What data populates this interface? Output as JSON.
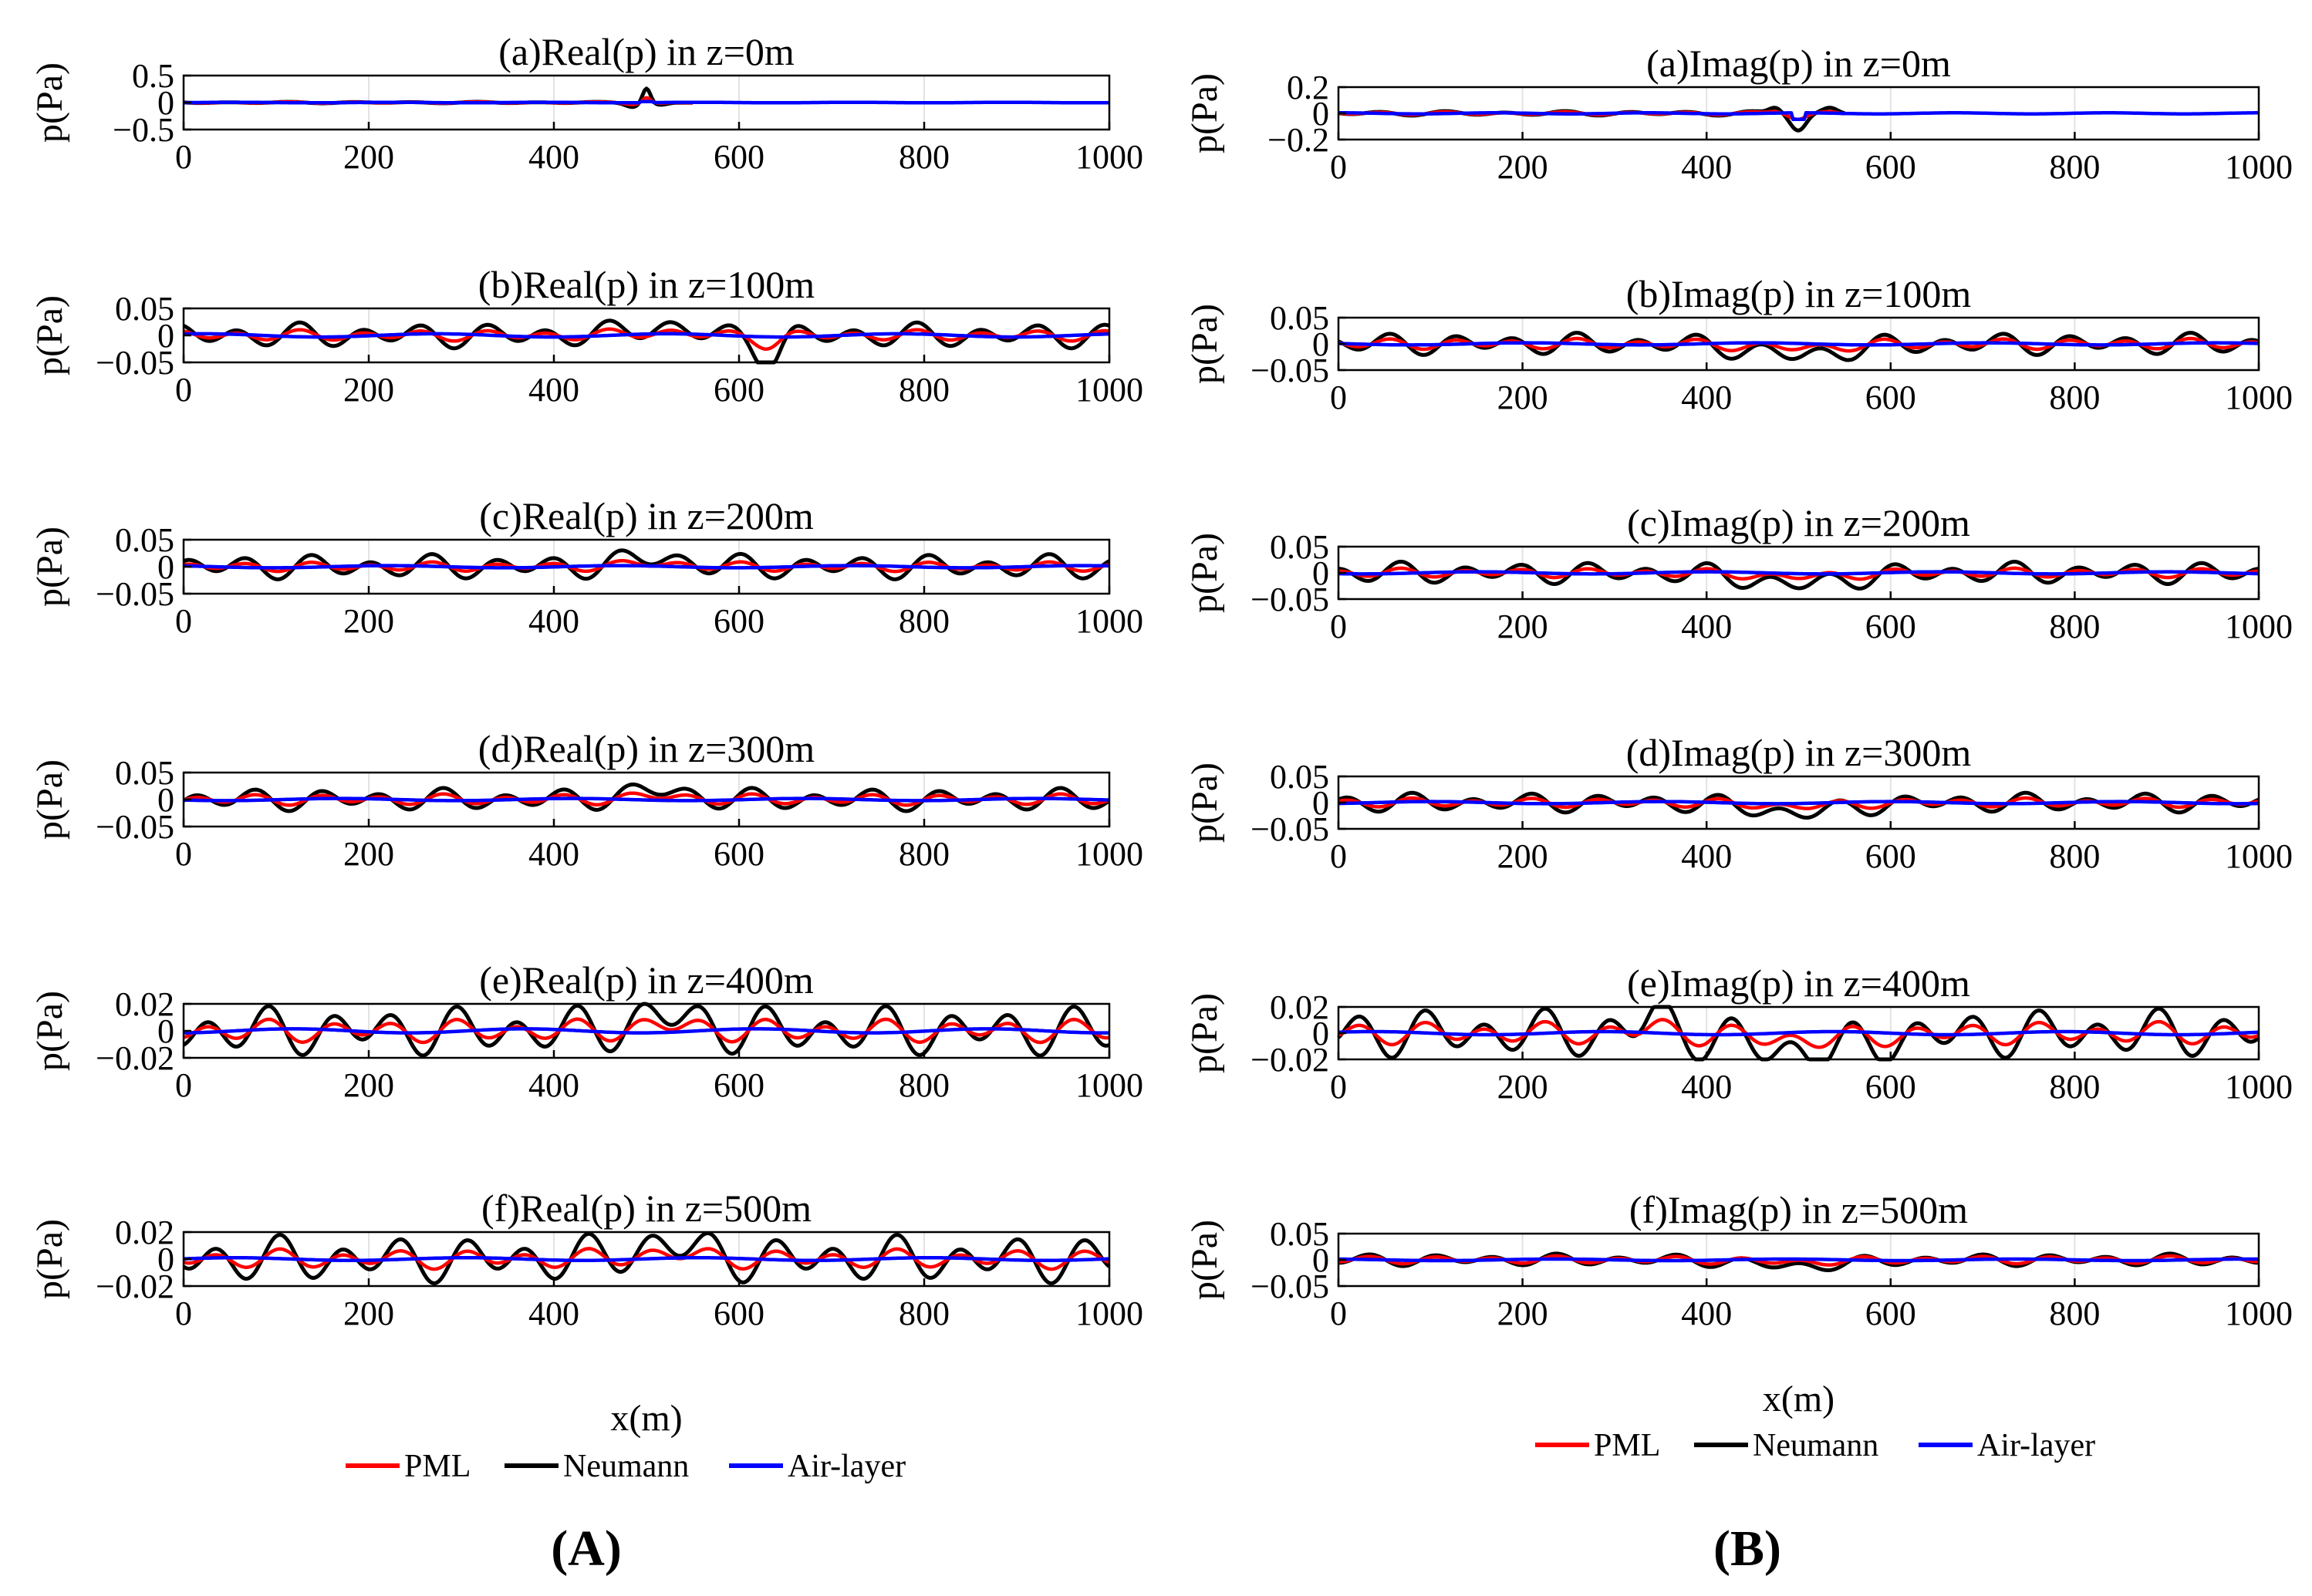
{
  "chart_data": [
    {
      "column": "A",
      "panel_label": "(A)",
      "xlabel": "x(m)",
      "legend": [
        "PML",
        "Neumann",
        "Air-layer"
      ],
      "series_colors": {
        "PML": "#ff0000",
        "Neumann": "#000000",
        "Air-layer": "#0000ff"
      },
      "subplots": [
        {
          "type": "line",
          "title": "(a)Real(p) in z=0m",
          "ylabel": "p(Pa)",
          "xlim": [
            0,
            1000
          ],
          "ylim": [
            -0.5,
            0.5
          ],
          "yticks": [
            -0.5,
            0,
            0.5
          ],
          "ytick_labels": [
            "−0.5",
            "0",
            "0.5"
          ],
          "xticks": [
            0,
            200,
            400,
            600,
            800,
            1000
          ],
          "xtick_labels": [
            "0",
            "200",
            "400",
            "600",
            "800",
            "1000"
          ],
          "neumann_amp": 0.012,
          "pml_amp": 0.008,
          "air_amp": 0.004,
          "seed": 1,
          "feature": "spike500"
        },
        {
          "type": "line",
          "title": "(b)Real(p) in z=100m",
          "ylabel": "p(Pa)",
          "xlim": [
            0,
            1000
          ],
          "ylim": [
            -0.05,
            0.05
          ],
          "yticks": [
            -0.05,
            0,
            0.05
          ],
          "ytick_labels": [
            "−0.05",
            "0",
            "0.05"
          ],
          "xticks": [
            0,
            200,
            400,
            600,
            800,
            1000
          ],
          "xtick_labels": [
            "0",
            "200",
            "400",
            "600",
            "800",
            "1000"
          ],
          "neumann_amp": 0.02,
          "pml_amp": 0.007,
          "air_amp": 0.003,
          "seed": 2,
          "feature": "dip630"
        },
        {
          "type": "line",
          "title": "(c)Real(p) in z=200m",
          "ylabel": "p(Pa)",
          "xlim": [
            0,
            1000
          ],
          "ylim": [
            -0.05,
            0.05
          ],
          "yticks": [
            -0.05,
            0,
            0.05
          ],
          "ytick_labels": [
            "−0.05",
            "0",
            "0.05"
          ],
          "xticks": [
            0,
            200,
            400,
            600,
            800,
            1000
          ],
          "xtick_labels": [
            "0",
            "200",
            "400",
            "600",
            "800",
            "1000"
          ],
          "neumann_amp": 0.02,
          "pml_amp": 0.006,
          "air_amp": 0.002,
          "seed": 3,
          "feature": "bump500"
        },
        {
          "type": "line",
          "title": "(d)Real(p) in z=300m",
          "ylabel": "p(Pa)",
          "xlim": [
            0,
            1000
          ],
          "ylim": [
            -0.05,
            0.05
          ],
          "yticks": [
            -0.05,
            0,
            0.05
          ],
          "ytick_labels": [
            "−0.05",
            "0",
            "0.05"
          ],
          "xticks": [
            0,
            200,
            400,
            600,
            800,
            1000
          ],
          "xtick_labels": [
            "0",
            "200",
            "400",
            "600",
            "800",
            "1000"
          ],
          "neumann_amp": 0.018,
          "pml_amp": 0.007,
          "air_amp": 0.002,
          "seed": 4,
          "feature": "bump500"
        },
        {
          "type": "line",
          "title": "(e)Real(p) in z=400m",
          "ylabel": "p(Pa)",
          "xlim": [
            0,
            1000
          ],
          "ylim": [
            -0.02,
            0.02
          ],
          "yticks": [
            -0.02,
            0,
            0.02
          ],
          "ytick_labels": [
            "−0.02",
            "0",
            "0.02"
          ],
          "xticks": [
            0,
            200,
            400,
            600,
            800,
            1000
          ],
          "xtick_labels": [
            "0",
            "200",
            "400",
            "600",
            "800",
            "1000"
          ],
          "neumann_amp": 0.016,
          "pml_amp": 0.006,
          "air_amp": 0.0015,
          "seed": 5,
          "feature": "bump520"
        },
        {
          "type": "line",
          "title": "(f)Real(p) in z=500m",
          "ylabel": "p(Pa)",
          "xlim": [
            0,
            1000
          ],
          "ylim": [
            -0.02,
            0.02
          ],
          "yticks": [
            -0.02,
            0,
            0.02
          ],
          "ytick_labels": [
            "−0.02",
            "0",
            "0.02"
          ],
          "xticks": [
            0,
            200,
            400,
            600,
            800,
            1000
          ],
          "xtick_labels": [
            "0",
            "200",
            "400",
            "600",
            "800",
            "1000"
          ],
          "neumann_amp": 0.015,
          "pml_amp": 0.005,
          "air_amp": 0.001,
          "seed": 6,
          "feature": "bump520"
        }
      ]
    },
    {
      "column": "B",
      "panel_label": "(B)",
      "xlabel": "x(m)",
      "legend": [
        "PML",
        "Neumann",
        "Air-layer"
      ],
      "series_colors": {
        "PML": "#ff0000",
        "Neumann": "#000000",
        "Air-layer": "#0000ff"
      },
      "subplots": [
        {
          "type": "line",
          "title": "(a)Imag(p) in z=0m",
          "ylabel": "p(Pa)",
          "xlim": [
            0,
            1000
          ],
          "ylim": [
            -0.2,
            0.2
          ],
          "yticks": [
            -0.2,
            0,
            0.2
          ],
          "ytick_labels": [
            "−0.2",
            "0",
            "0.2"
          ],
          "xticks": [
            0,
            200,
            400,
            600,
            800,
            1000
          ],
          "xtick_labels": [
            "0",
            "200",
            "400",
            "600",
            "800",
            "1000"
          ],
          "neumann_amp": 0.015,
          "pml_amp": 0.008,
          "air_amp": 0.004,
          "seed": 7,
          "feature": "dip500imag"
        },
        {
          "type": "line",
          "title": "(b)Imag(p) in z=100m",
          "ylabel": "p(Pa)",
          "xlim": [
            0,
            1000
          ],
          "ylim": [
            -0.05,
            0.05
          ],
          "yticks": [
            -0.05,
            0,
            0.05
          ],
          "ytick_labels": [
            "−0.05",
            "0",
            "0.05"
          ],
          "xticks": [
            0,
            200,
            400,
            600,
            800,
            1000
          ],
          "xtick_labels": [
            "0",
            "200",
            "400",
            "600",
            "800",
            "1000"
          ],
          "neumann_amp": 0.018,
          "pml_amp": 0.007,
          "air_amp": 0.002,
          "seed": 8,
          "feature": "trough500"
        },
        {
          "type": "line",
          "title": "(c)Imag(p) in z=200m",
          "ylabel": "p(Pa)",
          "xlim": [
            0,
            1000
          ],
          "ylim": [
            -0.05,
            0.05
          ],
          "yticks": [
            -0.05,
            0,
            0.05
          ],
          "ytick_labels": [
            "−0.05",
            "0",
            "0.05"
          ],
          "xticks": [
            0,
            200,
            400,
            600,
            800,
            1000
          ],
          "xtick_labels": [
            "0",
            "200",
            "400",
            "600",
            "800",
            "1000"
          ],
          "neumann_amp": 0.018,
          "pml_amp": 0.006,
          "air_amp": 0.002,
          "seed": 9,
          "feature": "trough500"
        },
        {
          "type": "line",
          "title": "(d)Imag(p) in z=300m",
          "ylabel": "p(Pa)",
          "xlim": [
            0,
            1000
          ],
          "ylim": [
            -0.05,
            0.05
          ],
          "yticks": [
            -0.05,
            0,
            0.05
          ],
          "ytick_labels": [
            "−0.05",
            "0",
            "0.05"
          ],
          "xticks": [
            0,
            200,
            400,
            600,
            800,
            1000
          ],
          "xtick_labels": [
            "0",
            "200",
            "400",
            "600",
            "800",
            "1000"
          ],
          "neumann_amp": 0.016,
          "pml_amp": 0.006,
          "air_amp": 0.002,
          "seed": 10,
          "feature": "trough500"
        },
        {
          "type": "line",
          "title": "(e)Imag(p) in z=400m",
          "ylabel": "p(Pa)",
          "xlim": [
            0,
            1000
          ],
          "ylim": [
            -0.02,
            0.02
          ],
          "yticks": [
            -0.02,
            0,
            0.02
          ],
          "ytick_labels": [
            "−0.02",
            "0",
            "0.02"
          ],
          "xticks": [
            0,
            200,
            400,
            600,
            800,
            1000
          ],
          "xtick_labels": [
            "0",
            "200",
            "400",
            "600",
            "800",
            "1000"
          ],
          "neumann_amp": 0.016,
          "pml_amp": 0.006,
          "air_amp": 0.0012,
          "seed": 11,
          "feature": "trough520imag"
        },
        {
          "type": "line",
          "title": "(f)Imag(p) in z=500m",
          "ylabel": "p(Pa)",
          "xlim": [
            0,
            1000
          ],
          "ylim": [
            -0.05,
            0.05
          ],
          "yticks": [
            -0.05,
            0,
            0.05
          ],
          "ytick_labels": [
            "−0.05",
            "0",
            "0.05"
          ],
          "xticks": [
            0,
            200,
            400,
            600,
            800,
            1000
          ],
          "xtick_labels": [
            "0",
            "200",
            "400",
            "600",
            "800",
            "1000"
          ],
          "neumann_amp": 0.01,
          "pml_amp": 0.005,
          "air_amp": 0.0015,
          "seed": 12,
          "feature": "trough500"
        }
      ]
    }
  ]
}
